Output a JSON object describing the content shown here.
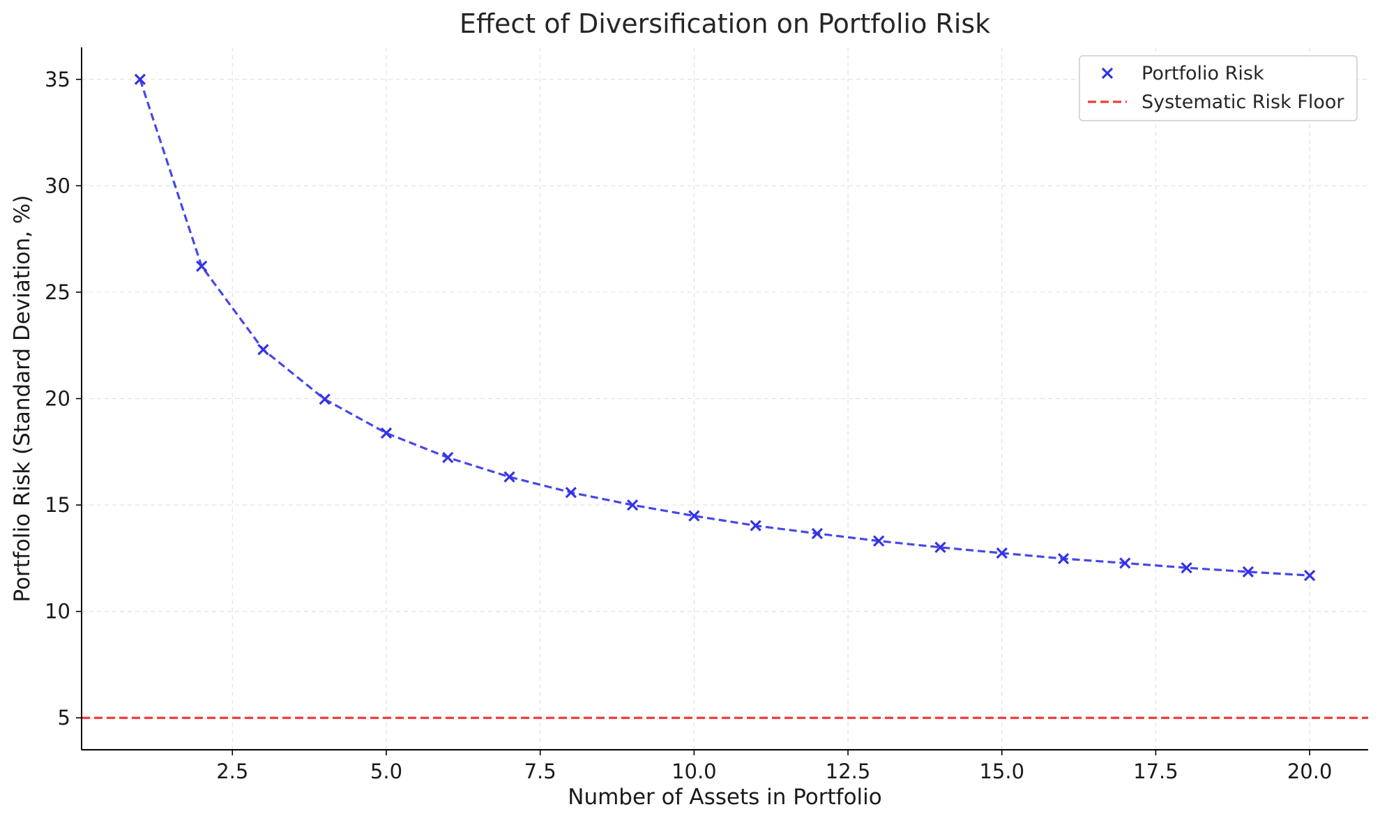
{
  "chart_data": {
    "type": "line",
    "title": "Effect of Diversification on Portfolio Risk",
    "xlabel": "Number of Assets in Portfolio",
    "ylabel": "Portfolio Risk (Standard Deviation, %)",
    "xlim": [
      0.05,
      20.95
    ],
    "ylim": [
      3.5,
      36.5
    ],
    "xticks": [
      2.5,
      5.0,
      7.5,
      10.0,
      12.5,
      15.0,
      17.5,
      20.0
    ],
    "xtick_labels": [
      "2.5",
      "5.0",
      "7.5",
      "10.0",
      "12.5",
      "15.0",
      "17.5",
      "20.0"
    ],
    "yticks": [
      5,
      10,
      15,
      20,
      25,
      30,
      35
    ],
    "ytick_labels": [
      "5",
      "10",
      "15",
      "20",
      "25",
      "30",
      "35"
    ],
    "grid": true,
    "legend_position": "top-right",
    "series": [
      {
        "name": "Portfolio Risk",
        "color": "#3333e6",
        "line_style": "dashed",
        "marker": "x",
        "x": [
          1,
          2,
          3,
          4,
          5,
          6,
          7,
          8,
          9,
          10,
          11,
          12,
          13,
          14,
          15,
          16,
          17,
          18,
          19,
          20
        ],
        "y": [
          35.0,
          26.22,
          22.3,
          19.97,
          18.38,
          17.23,
          16.32,
          15.59,
          15.0,
          14.49,
          14.03,
          13.66,
          13.31,
          13.01,
          12.74,
          12.48,
          12.27,
          12.05,
          11.86,
          11.69
        ]
      },
      {
        "name": "Systematic Risk Floor",
        "color": "#f03b3b",
        "line_style": "dashed",
        "type": "hline",
        "y": 5
      }
    ]
  }
}
